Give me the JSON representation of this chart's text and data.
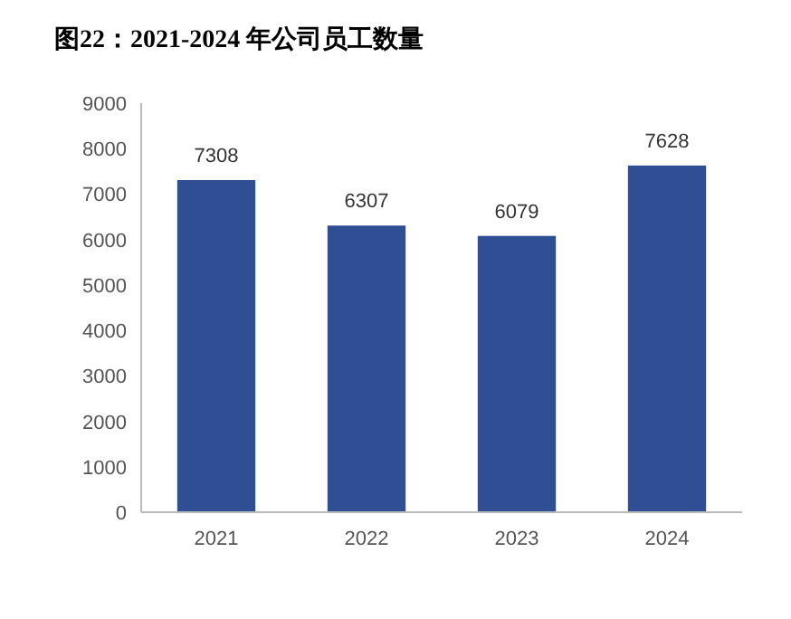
{
  "chart_data": {
    "type": "bar",
    "title": "图22：2021-2024 年公司员工数量",
    "categories": [
      "2021",
      "2022",
      "2023",
      "2024"
    ],
    "values": [
      7308,
      6307,
      6079,
      7628
    ],
    "color": "#2f4e93",
    "ylim": [
      0,
      9000
    ],
    "yticks": [
      0,
      1000,
      2000,
      3000,
      4000,
      5000,
      6000,
      7000,
      8000,
      9000
    ],
    "data_labels": true,
    "grid": false
  }
}
